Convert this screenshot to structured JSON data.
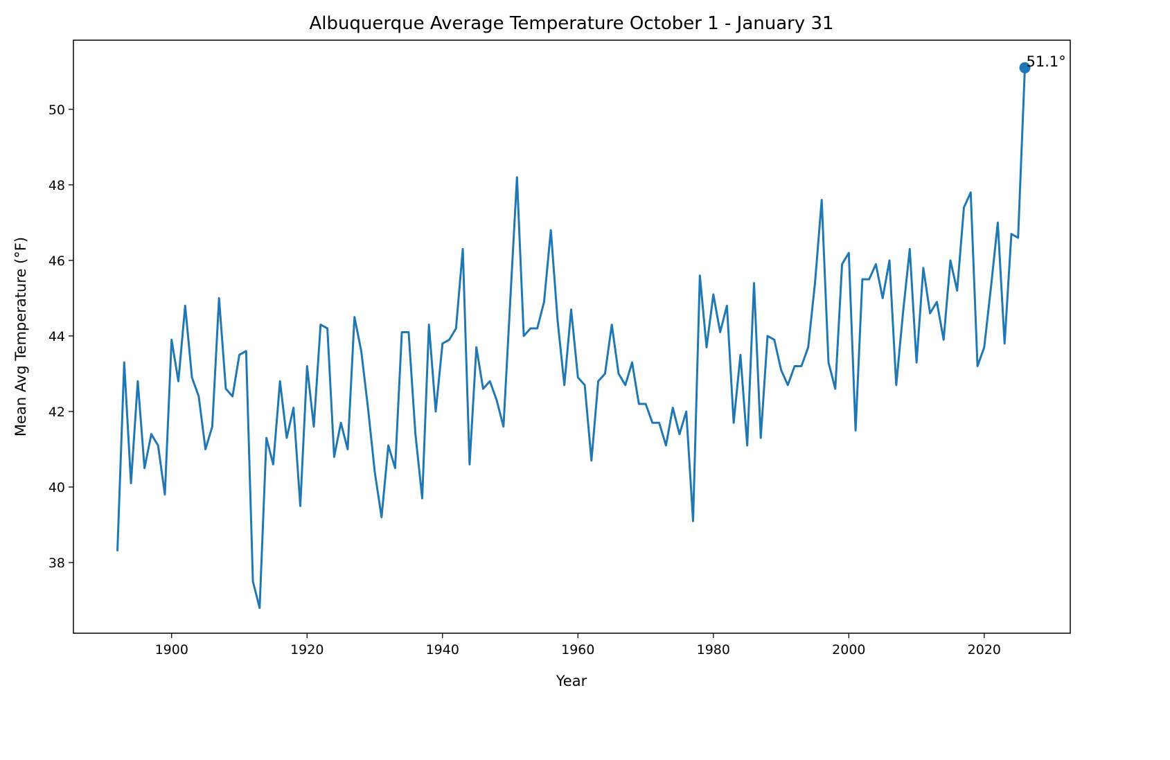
{
  "chart_data": {
    "type": "line",
    "title": "Albuquerque Average Temperature October 1 - January 31",
    "xlabel": "Year",
    "ylabel": "Mean Avg Temperature (°F)",
    "xlim": [
      1885.5,
      2032.7
    ],
    "ylim": [
      36.13,
      51.83
    ],
    "xticks": [
      1900,
      1920,
      1940,
      1960,
      1980,
      2000,
      2020
    ],
    "yticks": [
      38,
      40,
      42,
      44,
      46,
      48,
      50
    ],
    "grid": false,
    "color": "#1f77b4",
    "x_start": 1892,
    "values": [
      38.3,
      43.3,
      40.1,
      42.8,
      40.5,
      41.4,
      41.1,
      39.8,
      43.9,
      42.8,
      44.8,
      42.9,
      42.4,
      41.0,
      41.6,
      45.0,
      42.6,
      42.4,
      43.5,
      43.6,
      37.5,
      36.8,
      41.3,
      40.6,
      42.8,
      41.3,
      42.1,
      39.5,
      43.2,
      41.6,
      44.3,
      44.2,
      40.8,
      41.7,
      41.0,
      44.5,
      43.6,
      42.1,
      40.4,
      39.2,
      41.1,
      40.5,
      44.1,
      44.1,
      41.4,
      39.7,
      44.3,
      42.0,
      43.8,
      43.9,
      44.2,
      46.3,
      40.6,
      43.7,
      42.6,
      42.8,
      42.3,
      41.6,
      44.9,
      48.2,
      44.0,
      44.2,
      44.2,
      44.9,
      46.8,
      44.4,
      42.7,
      44.7,
      42.9,
      42.7,
      40.7,
      42.8,
      43.0,
      44.3,
      43.0,
      42.7,
      43.3,
      42.2,
      42.2,
      41.7,
      41.7,
      41.1,
      42.1,
      41.4,
      42.0,
      39.1,
      45.6,
      43.7,
      45.1,
      44.1,
      44.8,
      41.7,
      43.5,
      41.1,
      45.4,
      41.3,
      44.0,
      43.9,
      43.1,
      42.7,
      43.2,
      43.2,
      43.7,
      45.4,
      47.6,
      43.3,
      42.6,
      45.9,
      46.2,
      41.5,
      45.5,
      45.5,
      45.9,
      45.0,
      46.0,
      42.7,
      44.6,
      46.3,
      43.3,
      45.8,
      44.6,
      44.9,
      43.9,
      46.0,
      45.2,
      47.4,
      47.8,
      43.2,
      43.7,
      45.3,
      47.0,
      43.8,
      46.7,
      46.6,
      51.1
    ],
    "highlight": {
      "year": 2026,
      "value": 51.1,
      "label": "51.1°"
    }
  }
}
